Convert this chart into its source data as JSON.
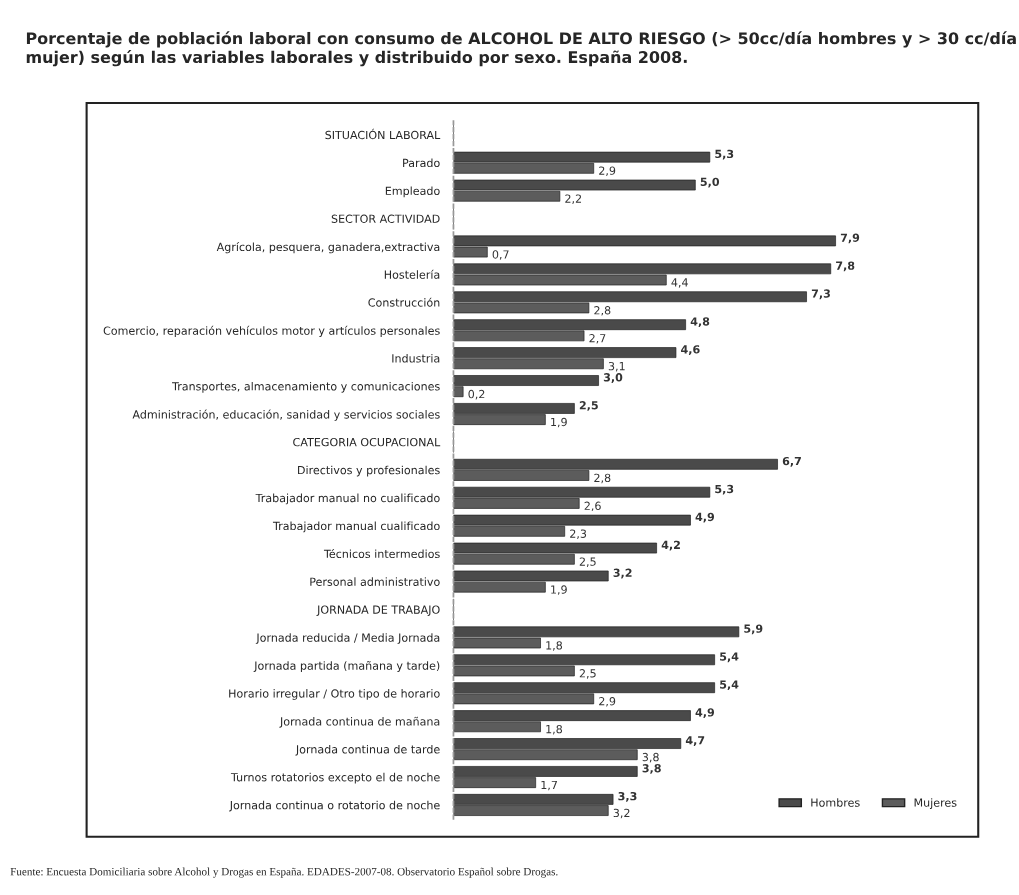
{
  "chart_data": {
    "type": "bar",
    "orientation": "horizontal",
    "title": "Porcentaje de población laboral con consumo de ALCOHOL DE ALTO RIESGO (> 50cc/día hombres y > 30 cc/día mujer) según las variables laborales y distribuido por sexo. España 2008.",
    "categories": [
      "SITUACIÓN LABORAL",
      "Parado",
      "Empleado",
      "SECTOR ACTIVIDAD",
      "Agrícola, pesquera, ganadera,extractiva",
      "Hostelería",
      "Construcción",
      "Comercio, reparación vehículos motor y artículos personales",
      "Industria",
      "Transportes, almacenamiento y comunicaciones",
      "Administración, educación, sanidad y servicios sociales",
      "CATEGORIA OCUPACIONAL",
      "Directivos y profesionales",
      "Trabajador manual no cualificado",
      "Trabajador manual cualificado",
      "Técnicos intermedios",
      "Personal administrativo",
      "JORNADA DE TRABAJO",
      "Jornada reducida / Media Jornada",
      "Jornada partida (mañana y tarde)",
      "Horario irregular / Otro tipo de horario",
      "Jornada continua de mañana",
      "Jornada continua de tarde",
      "Turnos rotatorios excepto el de noche",
      "Jornada continua o rotatorio de noche"
    ],
    "series": [
      {
        "name": "Hombres",
        "color": "#4a4a4a",
        "values": [
          null,
          5.3,
          5.0,
          null,
          7.9,
          7.8,
          7.3,
          4.8,
          4.6,
          3.0,
          2.5,
          null,
          6.7,
          5.3,
          4.9,
          4.2,
          3.2,
          null,
          5.9,
          5.4,
          5.4,
          4.9,
          4.7,
          3.8,
          3.3
        ],
        "value_labels": [
          null,
          "5,3",
          "5,0",
          null,
          "7,9",
          "7,8",
          "7,3",
          "4,8",
          "4,6",
          "3,0",
          "2,5",
          null,
          "6,7",
          "5,3",
          "4,9",
          "4,2",
          "3,2",
          null,
          "5,9",
          "5,4",
          "5,4",
          "4,9",
          "4,7",
          "3,8",
          "3,3"
        ]
      },
      {
        "name": "Mujeres",
        "color": "#5c5c5c",
        "values": [
          null,
          2.9,
          2.2,
          null,
          0.7,
          4.4,
          2.8,
          2.7,
          3.1,
          0.2,
          1.9,
          null,
          2.8,
          2.6,
          2.3,
          2.5,
          1.9,
          null,
          1.8,
          2.5,
          2.9,
          1.8,
          3.8,
          1.7,
          3.2
        ],
        "value_labels": [
          null,
          "2,9",
          "2,2",
          null,
          "0,7",
          "4,4",
          "2,8",
          "2,7",
          "3,1",
          "0,2",
          "1,9",
          null,
          "2,8",
          "2,6",
          "2,3",
          "2,5",
          "1,9",
          null,
          "1,8",
          "2,5",
          "2,9",
          "1,8",
          "3,8",
          "1,7",
          "3,2"
        ]
      }
    ],
    "tick_labels": "y",
    "grid": false,
    "legend": "bottom right",
    "annotations": [
      "Fuente: Encuesta Domiciliaria sobre Alcohol y Drogas en España. EDADES-2007-08. Observatorio Español sobre Drogas."
    ]
  }
}
